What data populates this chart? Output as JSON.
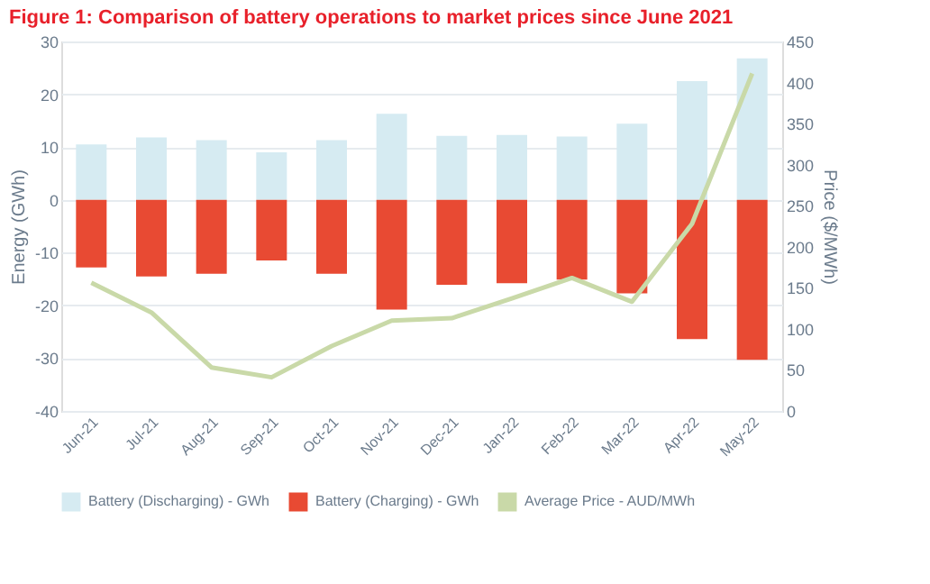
{
  "chart_data": {
    "type": "bar",
    "title": "Figure 1: Comparison of battery operations to market prices since June 2021",
    "ylabel": "Energy (GWh)",
    "y2label": "Price ($/MWh)",
    "categories": [
      "Jun-21",
      "Jul-21",
      "Aug-21",
      "Sep-21",
      "Oct-21",
      "Nov-21",
      "Dec-21",
      "Jan-22",
      "Feb-22",
      "Mar-22",
      "Apr-22",
      "May-22"
    ],
    "series": [
      {
        "name": "Battery (Discharging) -  GWh",
        "color": "#d6ebf2",
        "values": [
          10.5,
          11.8,
          11.3,
          9,
          11.3,
          16.3,
          12.1,
          12.3,
          12,
          14.4,
          22.5,
          26.8
        ]
      },
      {
        "name": "Battery (Charging) -  GWh",
        "color": "#e84a33",
        "values": [
          -12.8,
          -14.5,
          -14,
          -11.5,
          -14,
          -20.8,
          -16.1,
          -15.8,
          -15.1,
          -17.7,
          -26.4,
          -30.3
        ]
      },
      {
        "name": "Average Price - AUD/MWh",
        "type": "line",
        "axis": "y2",
        "color": "#c9d9a8",
        "values": [
          156,
          120,
          53,
          41,
          79,
          110,
          113,
          137,
          162,
          133,
          228,
          411
        ]
      }
    ],
    "ylim": [
      -40,
      30
    ],
    "yticks": [
      -40,
      -30,
      -20,
      -10,
      0,
      10,
      20,
      30
    ],
    "y2lim": [
      0,
      450
    ],
    "y2ticks": [
      0,
      50,
      100,
      150,
      200,
      250,
      300,
      350,
      400,
      450
    ],
    "stacked": true,
    "grid": "y",
    "legend": "bottom",
    "marker": "none"
  }
}
